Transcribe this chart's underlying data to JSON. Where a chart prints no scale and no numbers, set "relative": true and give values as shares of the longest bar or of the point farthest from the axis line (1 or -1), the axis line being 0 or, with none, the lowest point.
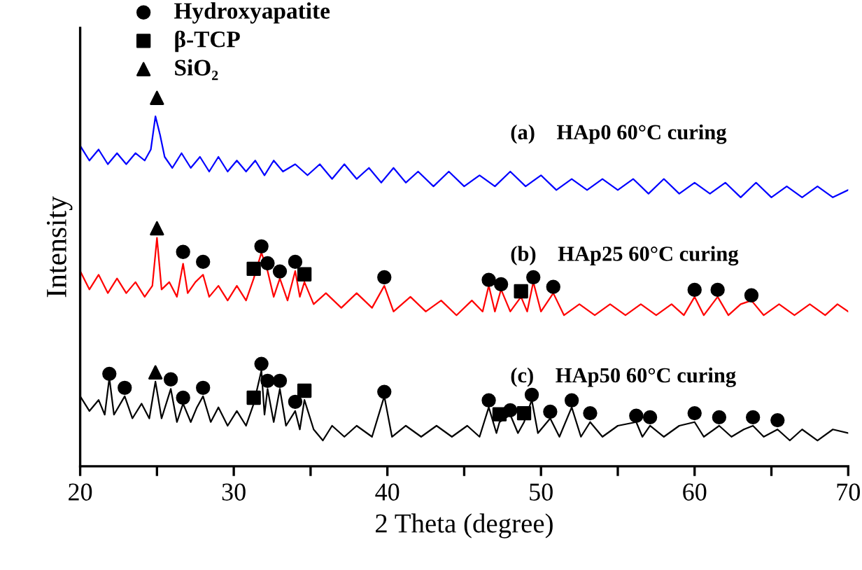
{
  "chart_data": {
    "type": "line",
    "relative": true,
    "xlabel": "2 Theta (degree)",
    "ylabel": "Intensity",
    "xlim": [
      20,
      70
    ],
    "xticks": [
      20,
      {
        "value": 25,
        "label": null
      },
      30,
      {
        "value": 35,
        "label": null
      },
      40,
      {
        "value": 45,
        "label": null
      },
      50,
      {
        "value": 55,
        "label": null
      },
      60,
      {
        "value": 65,
        "label": null
      },
      70
    ],
    "legend": "top left",
    "annotations": [
      "(a)    HAp0 60°C curing",
      "(b)    HAp25 60°C curing",
      "(c)    HAp50 60°C curing"
    ],
    "tick_labels": "x",
    "grid": false,
    "series": [
      {
        "color": "#0000ff",
        "x": [
          20,
          20.6,
          21.2,
          21.8,
          22.4,
          23,
          23.6,
          24.2,
          24.6,
          24.9,
          25.2,
          25.5,
          26,
          26.6,
          27.2,
          27.8,
          28.4,
          29,
          29.6,
          30.2,
          30.8,
          31.4,
          32,
          32.6,
          33.2,
          34,
          34.8,
          35.6,
          36.4,
          37.2,
          38,
          38.8,
          39.6,
          40.4,
          41.2,
          42,
          43,
          44,
          45,
          46,
          47,
          48,
          49,
          50,
          51,
          52,
          53,
          54,
          55,
          56,
          57,
          58,
          59,
          60,
          61,
          62,
          63,
          64,
          65,
          66,
          67,
          68,
          69,
          70
        ],
        "values": [
          0.87,
          0.83,
          0.86,
          0.82,
          0.85,
          0.82,
          0.85,
          0.83,
          0.86,
          0.95,
          0.9,
          0.84,
          0.81,
          0.85,
          0.81,
          0.84,
          0.8,
          0.84,
          0.8,
          0.83,
          0.8,
          0.83,
          0.79,
          0.83,
          0.8,
          0.82,
          0.79,
          0.82,
          0.78,
          0.82,
          0.78,
          0.81,
          0.77,
          0.81,
          0.77,
          0.8,
          0.76,
          0.8,
          0.76,
          0.79,
          0.76,
          0.8,
          0.76,
          0.79,
          0.75,
          0.78,
          0.75,
          0.78,
          0.75,
          0.78,
          0.74,
          0.78,
          0.74,
          0.77,
          0.74,
          0.77,
          0.73,
          0.77,
          0.73,
          0.76,
          0.73,
          0.76,
          0.73,
          0.75
        ]
      },
      {
        "color": "#ff0000",
        "x": [
          20,
          20.6,
          21.2,
          21.8,
          22.4,
          23,
          23.6,
          24.2,
          24.7,
          25,
          25.3,
          25.8,
          26.3,
          26.7,
          27,
          27.5,
          28,
          28.4,
          29,
          29.6,
          30.2,
          30.8,
          31.3,
          31.8,
          32.2,
          32.6,
          33,
          33.5,
          34,
          34.3,
          34.6,
          35.2,
          36,
          37,
          38,
          39,
          39.8,
          40.4,
          41.5,
          42.5,
          43.5,
          44.5,
          45.5,
          46.2,
          46.6,
          47,
          47.4,
          48,
          48.7,
          49.1,
          49.5,
          50,
          50.8,
          51.5,
          52.5,
          53.5,
          54.5,
          55.5,
          56.5,
          57.5,
          58.5,
          59.3,
          60,
          60.6,
          61.5,
          62.2,
          63,
          63.7,
          64.5,
          65.5,
          66.5,
          67.5,
          68.5,
          69.3,
          70
        ],
        "values": [
          0.53,
          0.48,
          0.52,
          0.47,
          0.51,
          0.47,
          0.5,
          0.46,
          0.49,
          0.62,
          0.48,
          0.5,
          0.46,
          0.55,
          0.47,
          0.5,
          0.52,
          0.46,
          0.49,
          0.45,
          0.49,
          0.45,
          0.51,
          0.58,
          0.53,
          0.46,
          0.51,
          0.45,
          0.53,
          0.46,
          0.5,
          0.44,
          0.47,
          0.43,
          0.47,
          0.43,
          0.49,
          0.42,
          0.46,
          0.42,
          0.45,
          0.41,
          0.45,
          0.42,
          0.49,
          0.42,
          0.48,
          0.42,
          0.46,
          0.42,
          0.5,
          0.42,
          0.47,
          0.41,
          0.44,
          0.41,
          0.44,
          0.41,
          0.44,
          0.41,
          0.44,
          0.41,
          0.46,
          0.41,
          0.46,
          0.41,
          0.44,
          0.45,
          0.41,
          0.44,
          0.41,
          0.44,
          0.41,
          0.44,
          0.42
        ]
      },
      {
        "color": "#000000",
        "x": [
          20,
          20.6,
          21.2,
          21.6,
          21.9,
          22.2,
          22.9,
          23.4,
          24,
          24.5,
          24.9,
          25.3,
          25.9,
          26.3,
          26.7,
          27.2,
          27.6,
          28,
          28.5,
          29,
          29.6,
          30.2,
          30.8,
          31.3,
          31.8,
          32,
          32.2,
          32.6,
          33,
          33.4,
          34,
          34.3,
          34.6,
          35.2,
          35.8,
          36.4,
          37.2,
          38,
          39,
          39.8,
          40.3,
          41.2,
          42.2,
          43.2,
          44.2,
          45.2,
          46,
          46.6,
          47.1,
          47.3,
          48,
          48.5,
          48.9,
          49.4,
          49.8,
          50.6,
          51.2,
          52,
          52.6,
          53.2,
          54,
          55,
          56.2,
          56.6,
          57.1,
          58,
          59,
          60,
          60.6,
          61.6,
          62.4,
          63.2,
          63.8,
          64.5,
          65.4,
          66.2,
          67,
          68,
          69,
          70
        ],
        "values": [
          0.19,
          0.15,
          0.18,
          0.14,
          0.24,
          0.14,
          0.19,
          0.13,
          0.17,
          0.13,
          0.23,
          0.13,
          0.21,
          0.12,
          0.17,
          0.12,
          0.16,
          0.19,
          0.12,
          0.16,
          0.11,
          0.15,
          0.11,
          0.17,
          0.26,
          0.14,
          0.21,
          0.12,
          0.21,
          0.11,
          0.15,
          0.1,
          0.18,
          0.1,
          0.07,
          0.11,
          0.08,
          0.11,
          0.08,
          0.19,
          0.08,
          0.11,
          0.08,
          0.11,
          0.08,
          0.11,
          0.08,
          0.16,
          0.09,
          0.12,
          0.14,
          0.09,
          0.12,
          0.18,
          0.09,
          0.13,
          0.08,
          0.16,
          0.08,
          0.12,
          0.08,
          0.11,
          0.12,
          0.08,
          0.11,
          0.08,
          0.11,
          0.12,
          0.08,
          0.11,
          0.08,
          0.1,
          0.11,
          0.08,
          0.1,
          0.07,
          0.1,
          0.07,
          0.1,
          0.09
        ]
      },
      {
        "name": "Hydroxyapatite",
        "type": "scatter",
        "marker": "circle",
        "color": "#000000",
        "x": [
          26.7,
          28.0,
          31.8,
          32.2,
          33.0,
          34.0,
          39.8,
          46.6,
          47.4,
          49.5,
          50.8,
          60.0,
          61.5,
          63.7,
          21.9,
          22.9,
          25.9,
          26.7,
          28.0,
          31.8,
          32.2,
          33.0,
          34.0,
          39.8,
          46.6,
          48.0,
          49.4,
          50.6,
          52.0,
          53.2,
          56.2,
          57.1,
          60.0,
          61.6,
          63.8,
          65.4
        ],
        "values": [
          0.582,
          0.555,
          0.597,
          0.551,
          0.529,
          0.555,
          0.513,
          0.506,
          0.494,
          0.513,
          0.487,
          0.479,
          0.479,
          0.464,
          0.251,
          0.213,
          0.236,
          0.186,
          0.213,
          0.278,
          0.232,
          0.232,
          0.175,
          0.202,
          0.179,
          0.152,
          0.194,
          0.148,
          0.179,
          0.144,
          0.137,
          0.133,
          0.144,
          0.133,
          0.133,
          0.125
        ]
      },
      {
        "name": "β-TCP",
        "type": "scatter",
        "marker": "square",
        "color": "#000000",
        "x": [
          31.3,
          34.6,
          48.7,
          31.3,
          34.6,
          47.3,
          48.9
        ],
        "values": [
          0.536,
          0.521,
          0.475,
          0.186,
          0.205,
          0.141,
          0.144
        ]
      },
      {
        "name": "SiO₂",
        "type": "scatter",
        "marker": "triangle",
        "color": "#000000",
        "x": [
          25.0,
          25.0,
          24.9
        ],
        "values": [
          1.0,
          0.646,
          0.255
        ]
      }
    ]
  }
}
